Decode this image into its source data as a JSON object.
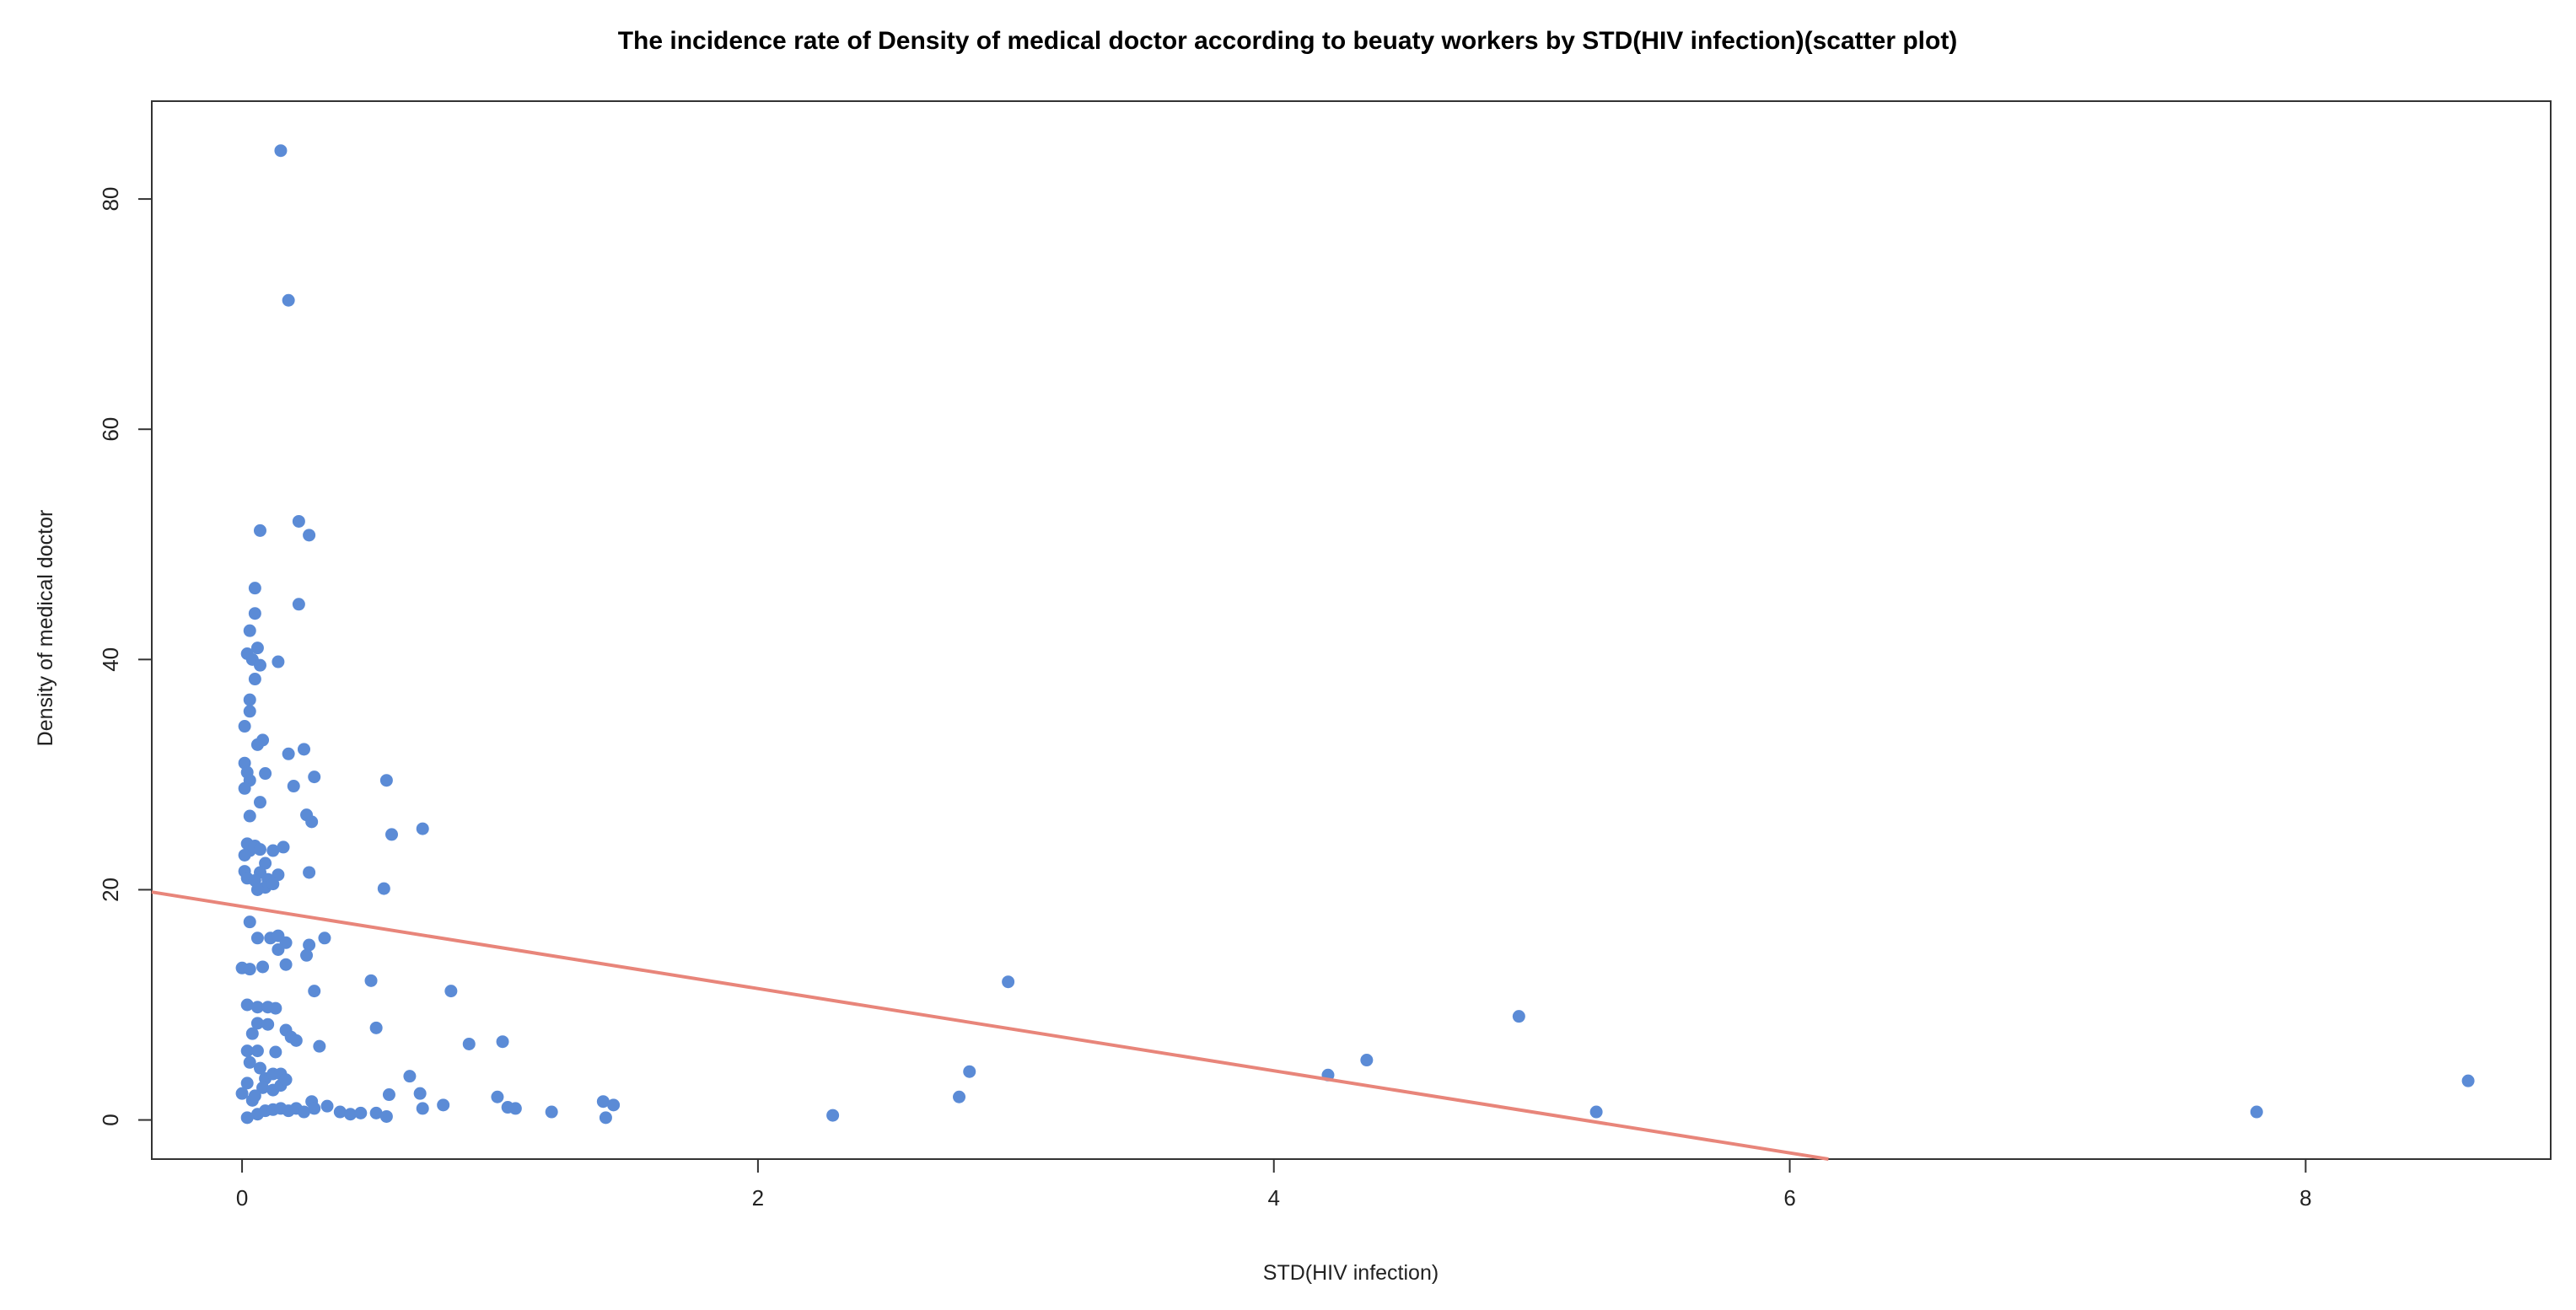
{
  "chart_data": {
    "type": "scatter",
    "title": "The incidence rate of Density of medical doctor according to beuaty workers by STD(HIV infection)(scatter plot)",
    "xlabel": "STD(HIV infection)",
    "ylabel": "Density of medical doctor",
    "xlim": [
      -0.35,
      8.95
    ],
    "ylim": [
      -3.4,
      88.5
    ],
    "xticks": [
      0,
      2,
      4,
      6,
      8
    ],
    "yticks": [
      0,
      20,
      40,
      60,
      80
    ],
    "grid": false,
    "legend": "none",
    "point_color": "#5b8bd6",
    "line_color": "#e8857a",
    "points": [
      [
        0.15,
        84.2
      ],
      [
        0.18,
        71.2
      ],
      [
        0.07,
        51.2
      ],
      [
        0.22,
        52.0
      ],
      [
        0.26,
        50.8
      ],
      [
        0.05,
        46.2
      ],
      [
        0.22,
        44.8
      ],
      [
        0.05,
        44.0
      ],
      [
        0.03,
        42.5
      ],
      [
        0.02,
        40.5
      ],
      [
        0.04,
        40.0
      ],
      [
        0.06,
        41.0
      ],
      [
        0.07,
        39.5
      ],
      [
        0.05,
        38.3
      ],
      [
        0.14,
        39.8
      ],
      [
        0.03,
        36.5
      ],
      [
        0.03,
        35.5
      ],
      [
        0.01,
        34.2
      ],
      [
        0.08,
        33.0
      ],
      [
        0.06,
        32.6
      ],
      [
        0.18,
        31.8
      ],
      [
        0.24,
        32.2
      ],
      [
        0.01,
        31.0
      ],
      [
        0.02,
        30.2
      ],
      [
        0.03,
        29.5
      ],
      [
        0.01,
        28.8
      ],
      [
        0.09,
        30.1
      ],
      [
        0.28,
        29.8
      ],
      [
        0.56,
        29.5
      ],
      [
        0.2,
        29.0
      ],
      [
        0.07,
        27.6
      ],
      [
        0.03,
        26.4
      ],
      [
        0.25,
        26.5
      ],
      [
        0.27,
        25.9
      ],
      [
        0.7,
        25.3
      ],
      [
        0.58,
        24.8
      ],
      [
        0.02,
        24.0
      ],
      [
        0.03,
        23.4
      ],
      [
        0.05,
        23.8
      ],
      [
        0.01,
        23.0
      ],
      [
        0.07,
        23.5
      ],
      [
        0.12,
        23.4
      ],
      [
        0.16,
        23.7
      ],
      [
        0.09,
        22.3
      ],
      [
        0.01,
        21.6
      ],
      [
        0.02,
        21.0
      ],
      [
        0.07,
        21.5
      ],
      [
        0.1,
        20.9
      ],
      [
        0.14,
        21.3
      ],
      [
        0.26,
        21.5
      ],
      [
        0.05,
        20.8
      ],
      [
        0.09,
        20.2
      ],
      [
        0.12,
        20.5
      ],
      [
        0.55,
        20.1
      ],
      [
        0.06,
        20.0
      ],
      [
        0.03,
        17.2
      ],
      [
        0.06,
        15.8
      ],
      [
        0.11,
        15.8
      ],
      [
        0.14,
        16.0
      ],
      [
        0.17,
        15.4
      ],
      [
        0.26,
        15.2
      ],
      [
        0.32,
        15.8
      ],
      [
        0.14,
        14.8
      ],
      [
        0.25,
        14.3
      ],
      [
        0.0,
        13.2
      ],
      [
        0.03,
        13.1
      ],
      [
        0.08,
        13.3
      ],
      [
        0.17,
        13.5
      ],
      [
        0.5,
        12.1
      ],
      [
        0.28,
        11.2
      ],
      [
        0.81,
        11.2
      ],
      [
        0.02,
        10.0
      ],
      [
        0.06,
        9.8
      ],
      [
        0.1,
        9.8
      ],
      [
        0.13,
        9.7
      ],
      [
        0.06,
        8.4
      ],
      [
        0.1,
        8.3
      ],
      [
        0.52,
        8.0
      ],
      [
        0.04,
        7.5
      ],
      [
        0.17,
        7.8
      ],
      [
        0.19,
        7.2
      ],
      [
        0.21,
        6.9
      ],
      [
        0.02,
        6.0
      ],
      [
        0.06,
        6.0
      ],
      [
        0.13,
        5.9
      ],
      [
        0.3,
        6.4
      ],
      [
        0.88,
        6.6
      ],
      [
        1.01,
        6.8
      ],
      [
        0.03,
        5.0
      ],
      [
        0.07,
        4.5
      ],
      [
        0.02,
        3.2
      ],
      [
        0.09,
        3.6
      ],
      [
        0.12,
        4.0
      ],
      [
        0.15,
        4.0
      ],
      [
        0.08,
        2.8
      ],
      [
        0.12,
        2.6
      ],
      [
        0.15,
        3.0
      ],
      [
        0.17,
        3.5
      ],
      [
        0.65,
        3.8
      ],
      [
        0.0,
        2.3
      ],
      [
        0.04,
        1.7
      ],
      [
        0.05,
        2.1
      ],
      [
        0.57,
        2.2
      ],
      [
        0.69,
        2.3
      ],
      [
        0.99,
        2.0
      ],
      [
        1.4,
        1.6
      ],
      [
        1.44,
        1.3
      ],
      [
        0.27,
        1.6
      ],
      [
        0.33,
        1.2
      ],
      [
        0.02,
        0.2
      ],
      [
        0.06,
        0.5
      ],
      [
        0.09,
        0.8
      ],
      [
        0.12,
        0.9
      ],
      [
        0.15,
        1.0
      ],
      [
        0.18,
        0.8
      ],
      [
        0.21,
        1.0
      ],
      [
        0.24,
        0.7
      ],
      [
        0.28,
        1.0
      ],
      [
        0.38,
        0.7
      ],
      [
        0.42,
        0.5
      ],
      [
        0.46,
        0.6
      ],
      [
        0.52,
        0.6
      ],
      [
        0.56,
        0.3
      ],
      [
        0.7,
        1.0
      ],
      [
        0.78,
        1.3
      ],
      [
        1.03,
        1.1
      ],
      [
        1.06,
        1.0
      ],
      [
        1.2,
        0.7
      ],
      [
        1.41,
        0.2
      ],
      [
        2.29,
        0.4
      ],
      [
        2.78,
        2.0
      ],
      [
        2.82,
        4.2
      ],
      [
        2.97,
        12.0
      ],
      [
        4.21,
        3.9
      ],
      [
        4.36,
        5.2
      ],
      [
        4.95,
        9.0
      ],
      [
        5.25,
        0.7
      ],
      [
        7.81,
        0.7
      ],
      [
        8.63,
        3.4
      ]
    ],
    "regression": {
      "x_start": -0.35,
      "y_start": 19.8,
      "x_end": 6.15,
      "y_end": -3.4
    }
  }
}
